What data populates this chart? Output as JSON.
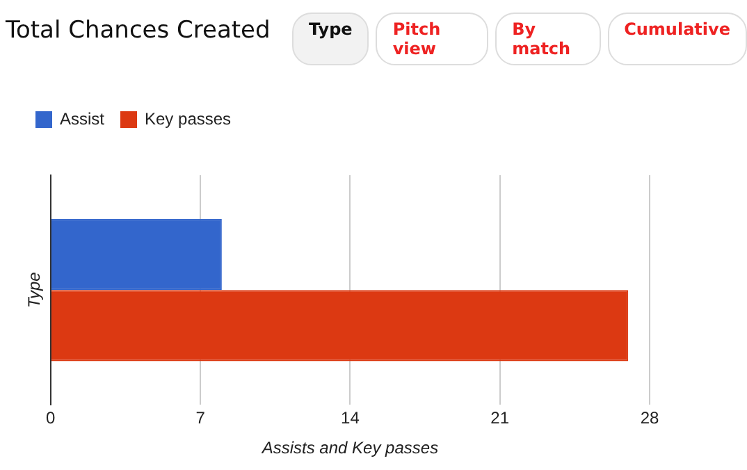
{
  "chart_data": {
    "type": "bar",
    "orientation": "horizontal",
    "title": "Total Chances Created",
    "annotations": [
      "Type",
      "Pitch view",
      "By match",
      "Cumulative"
    ],
    "xlabel": "Assists and Key passes",
    "ylabel": "Type",
    "categories": [
      null
    ],
    "series": [
      {
        "name": "Assist",
        "color": "#3366cc",
        "values": [
          8
        ]
      },
      {
        "name": "Key passes",
        "color": "#dc3912",
        "values": [
          27
        ]
      }
    ],
    "xlim": [
      0,
      28
    ],
    "xticks": [
      0,
      7,
      14,
      21,
      28
    ],
    "grid": "x",
    "legend": "top left"
  }
}
